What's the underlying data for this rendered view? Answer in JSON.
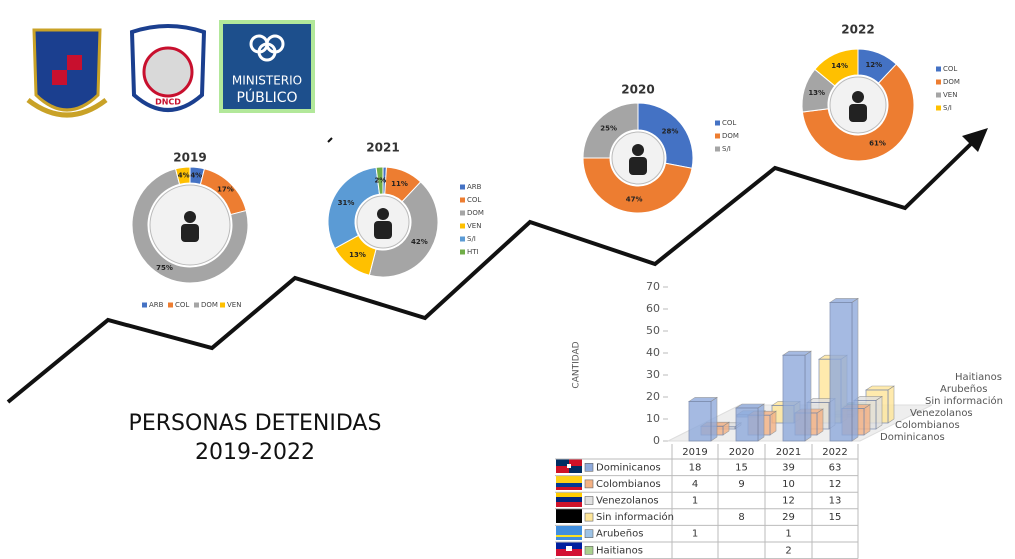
{
  "title": "PERSONAS DETENIDAS",
  "subtitle": "2019-2022",
  "logos": [
    "DNCD",
    "MINISTERIO",
    "PÚBLICO"
  ],
  "chart_data": [
    {
      "type": "donut",
      "title": "2019",
      "categories": [
        "ARB",
        "COL",
        "DOM",
        "VEN"
      ],
      "values": [
        4,
        17,
        75,
        4
      ],
      "value_labels": [
        "4%",
        "17%",
        "75%",
        "4%"
      ],
      "colors": [
        "#4472c4",
        "#ed7d31",
        "#a5a5a5",
        "#ffc000"
      ],
      "legend": "bottom"
    },
    {
      "type": "donut",
      "title": "2021",
      "categories": [
        "ARB",
        "COL",
        "DOM",
        "VEN",
        "S/I",
        "HTI"
      ],
      "values": [
        1,
        11,
        42,
        13,
        31,
        2
      ],
      "value_labels": [
        "1%",
        "11%",
        "42%",
        "13%",
        "31%",
        "2%"
      ],
      "colors": [
        "#4472c4",
        "#ed7d31",
        "#a5a5a5",
        "#ffc000",
        "#5b9bd5",
        "#70ad47"
      ],
      "legend": "right"
    },
    {
      "type": "donut",
      "title": "2020",
      "categories": [
        "COL",
        "DOM",
        "S/I"
      ],
      "values": [
        28,
        47,
        25
      ],
      "value_labels": [
        "28%",
        "47%",
        "25%"
      ],
      "colors": [
        "#4472c4",
        "#ed7d31",
        "#a5a5a5"
      ],
      "legend": "right"
    },
    {
      "type": "donut",
      "title": "2022",
      "categories": [
        "COL",
        "DOM",
        "VEN",
        "S/I"
      ],
      "values": [
        12,
        61,
        13,
        14
      ],
      "value_labels": [
        "12%",
        "61%",
        "13%",
        "14%"
      ],
      "colors": [
        "#4472c4",
        "#ed7d31",
        "#a5a5a5",
        "#ffc000"
      ],
      "legend": "right"
    },
    {
      "type": "bar3d",
      "y_label": "CANTIDAD",
      "categories": [
        "2019",
        "2020",
        "2021",
        "2022"
      ],
      "ylim": [
        0,
        70
      ],
      "yticks": [
        0,
        10,
        20,
        30,
        40,
        50,
        60,
        70
      ],
      "series": [
        {
          "name": "Dominicanos",
          "color": "#8faadc",
          "values": [
            18,
            15,
            39,
            63
          ]
        },
        {
          "name": "Colombianos",
          "color": "#f4b183",
          "values": [
            4,
            9,
            10,
            12
          ]
        },
        {
          "name": "Venezolanos",
          "color": "#e0e0e0",
          "values": [
            1,
            null,
            12,
            13
          ]
        },
        {
          "name": "Sin información",
          "color": "#ffe699",
          "values": [
            null,
            8,
            29,
            15
          ]
        },
        {
          "name": "Arubeños",
          "color": "#9dc3e6",
          "values": [
            1,
            null,
            1,
            null
          ]
        },
        {
          "name": "Haitianos",
          "color": "#a9d18e",
          "values": [
            null,
            null,
            2,
            null
          ]
        }
      ]
    }
  ]
}
